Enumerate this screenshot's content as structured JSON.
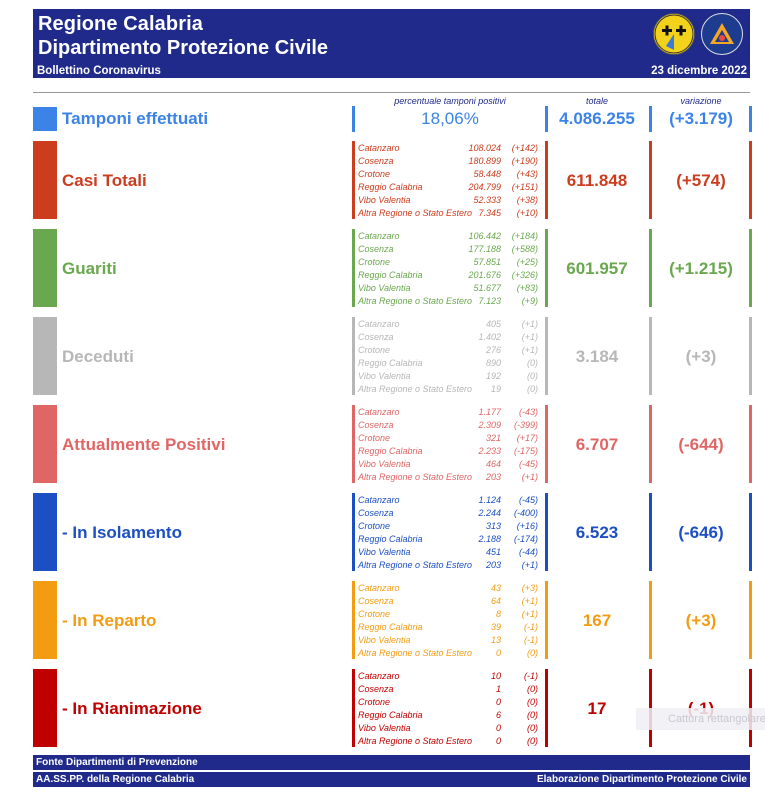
{
  "header": {
    "title1": "Regione Calabria",
    "title2": "Dipartimento Protezione Civile",
    "bulletin": "Bollettino Coronavirus",
    "date": "23 dicembre 2022"
  },
  "columns": {
    "percent": "percentuale tamponi positivi",
    "total": "totale",
    "change": "variazione"
  },
  "tamponi": {
    "label": "Tamponi effettuati",
    "percent": "18,06%",
    "total": "4.086.255",
    "change": "(+3.179)",
    "color": "#3b83e6"
  },
  "sections": [
    {
      "id": "casi-totali",
      "label": "Casi Totali",
      "color": "#cc3d1e",
      "total": "611.848",
      "change": "(+574)",
      "rows": [
        {
          "name": "Catanzaro",
          "value": "108.024",
          "diff": "(+142)"
        },
        {
          "name": "Cosenza",
          "value": "180.899",
          "diff": "(+190)"
        },
        {
          "name": "Crotone",
          "value": "58.448",
          "diff": "(+43)"
        },
        {
          "name": "Reggio Calabria",
          "value": "204.799",
          "diff": "(+151)"
        },
        {
          "name": "Vibo Valentia",
          "value": "52.333",
          "diff": "(+38)"
        },
        {
          "name": "Altra Regione o Stato Estero",
          "value": "7.345",
          "diff": "(+10)"
        }
      ]
    },
    {
      "id": "guariti",
      "label": "Guariti",
      "color": "#6aa84f",
      "total": "601.957",
      "change": "(+1.215)",
      "rows": [
        {
          "name": "Catanzaro",
          "value": "106.442",
          "diff": "(+184)"
        },
        {
          "name": "Cosenza",
          "value": "177.188",
          "diff": "(+588)"
        },
        {
          "name": "Crotone",
          "value": "57.851",
          "diff": "(+25)"
        },
        {
          "name": "Reggio Calabria",
          "value": "201.676",
          "diff": "(+326)"
        },
        {
          "name": "Vibo Valentia",
          "value": "51.677",
          "diff": "(+83)"
        },
        {
          "name": "Altra Regione o Stato Estero",
          "value": "7.123",
          "diff": "(+9)"
        }
      ]
    },
    {
      "id": "deceduti",
      "label": "Deceduti",
      "color": "#b7b7b7",
      "total": "3.184",
      "change": "(+3)",
      "rows": [
        {
          "name": "Catanzaro",
          "value": "405",
          "diff": "(+1)"
        },
        {
          "name": "Cosenza",
          "value": "1.402",
          "diff": "(+1)"
        },
        {
          "name": "Crotone",
          "value": "276",
          "diff": "(+1)"
        },
        {
          "name": "Reggio Calabria",
          "value": "890",
          "diff": "(0)"
        },
        {
          "name": "Vibo Valentia",
          "value": "192",
          "diff": "(0)"
        },
        {
          "name": "Altra Regione o Stato Estero",
          "value": "19",
          "diff": "(0)"
        }
      ]
    },
    {
      "id": "attualmente-positivi",
      "label": "Attualmente Positivi",
      "color": "#e06666",
      "total": "6.707",
      "change": "(-644)",
      "rows": [
        {
          "name": "Catanzaro",
          "value": "1.177",
          "diff": "(-43)"
        },
        {
          "name": "Cosenza",
          "value": "2.309",
          "diff": "(-399)"
        },
        {
          "name": "Crotone",
          "value": "321",
          "diff": "(+17)"
        },
        {
          "name": "Reggio Calabria",
          "value": "2.233",
          "diff": "(-175)"
        },
        {
          "name": "Vibo Valentia",
          "value": "464",
          "diff": "(-45)"
        },
        {
          "name": "Altra Regione o Stato Estero",
          "value": "203",
          "diff": "(+1)"
        }
      ]
    },
    {
      "id": "in-isolamento",
      "label": " - In Isolamento",
      "color": "#1c4fc4",
      "total": "6.523",
      "change": "(-646)",
      "rows": [
        {
          "name": "Catanzaro",
          "value": "1.124",
          "diff": "(-45)"
        },
        {
          "name": "Cosenza",
          "value": "2.244",
          "diff": "(-400)"
        },
        {
          "name": "Crotone",
          "value": "313",
          "diff": "(+16)"
        },
        {
          "name": "Reggio Calabria",
          "value": "2.188",
          "diff": "(-174)"
        },
        {
          "name": "Vibo Valentia",
          "value": "451",
          "diff": "(-44)"
        },
        {
          "name": "Altra Regione o Stato Estero",
          "value": "203",
          "diff": "(+1)"
        }
      ]
    },
    {
      "id": "in-reparto",
      "label": " - In Reparto",
      "color": "#f39c12",
      "total": "167",
      "change": "(+3)",
      "rows": [
        {
          "name": "Catanzaro",
          "value": "43",
          "diff": "(+3)"
        },
        {
          "name": "Cosenza",
          "value": "64",
          "diff": "(+1)"
        },
        {
          "name": "Crotone",
          "value": "8",
          "diff": "(+1)"
        },
        {
          "name": "Reggio Calabria",
          "value": "39",
          "diff": "(-1)"
        },
        {
          "name": "Vibo Valentia",
          "value": "13",
          "diff": "(-1)"
        },
        {
          "name": "Altra Regione o Stato Estero",
          "value": "0",
          "diff": "(0)"
        }
      ]
    },
    {
      "id": "in-rianimazione",
      "label": " - In Rianimazione",
      "color": "#c00000",
      "total": "17",
      "change": "(-1)",
      "rows": [
        {
          "name": "Catanzaro",
          "value": "10",
          "diff": "(-1)"
        },
        {
          "name": "Cosenza",
          "value": "1",
          "diff": "(0)"
        },
        {
          "name": "Crotone",
          "value": "0",
          "diff": "(0)"
        },
        {
          "name": "Reggio Calabria",
          "value": "6",
          "diff": "(0)"
        },
        {
          "name": "Vibo Valentia",
          "value": "0",
          "diff": "(0)"
        },
        {
          "name": "Altra Regione o Stato Estero",
          "value": "0",
          "diff": "(0)"
        }
      ]
    }
  ],
  "footer": {
    "line1": "Fonte Dipartimenti di Prevenzione",
    "line2": "AA.SS.PP.  della Regione Calabria",
    "credit": "Elaborazione Dipartimento Protezione Civile"
  },
  "overlay": {
    "text": "Cattura rettangolare"
  }
}
